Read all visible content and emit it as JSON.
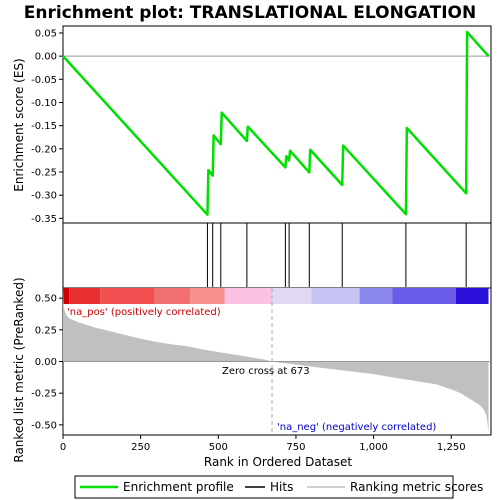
{
  "chart_data": {
    "type": "line",
    "title": "Enrichment plot: TRANSLATIONAL ELONGATION",
    "top_panel": {
      "ylabel": "Enrichment score (ES)",
      "ylim": [
        -0.36,
        0.065
      ],
      "yticks": [
        0.05,
        0.0,
        -0.05,
        -0.1,
        -0.15,
        -0.2,
        -0.25,
        -0.3,
        -0.35
      ],
      "ytick_labels": [
        "0.05",
        "0.00",
        "-0.05",
        "-0.10",
        "-0.15",
        "-0.20",
        "-0.25",
        "-0.30",
        "-0.35"
      ],
      "series": [
        {
          "name": "Enrichment profile",
          "color": "#00e000",
          "x": [
            0,
            465,
            468,
            482,
            485,
            508,
            511,
            592,
            595,
            716,
            719,
            728,
            731,
            793,
            796,
            899,
            902,
            1104,
            1107,
            1298,
            1301,
            1370
          ],
          "y": [
            0.0,
            -0.342,
            -0.246,
            -0.258,
            -0.171,
            -0.19,
            -0.122,
            -0.183,
            -0.152,
            -0.24,
            -0.216,
            -0.225,
            -0.204,
            -0.251,
            -0.202,
            -0.278,
            -0.193,
            -0.341,
            -0.155,
            -0.296,
            0.052,
            0.0
          ]
        }
      ]
    },
    "hits": {
      "name": "Hits",
      "x": [
        465,
        482,
        508,
        592,
        716,
        728,
        793,
        899,
        1104,
        1298
      ]
    },
    "bottom_panel": {
      "ylabel": "Ranked list metric (PreRanked)",
      "xlabel": "Rank in Ordered Dataset",
      "ylim": [
        -0.58,
        0.58
      ],
      "yticks": [
        0.5,
        0.25,
        0.0,
        -0.25,
        -0.5
      ],
      "ytick_labels": [
        "0.50",
        "0.25",
        "0.00",
        "-0.25",
        "-0.50"
      ],
      "xlim": [
        0,
        1378
      ],
      "xticks": [
        0,
        250,
        500,
        750,
        1000,
        1250
      ],
      "xtick_labels": [
        "0",
        "250",
        "500",
        "750",
        "1,000",
        "1,250"
      ],
      "series": [
        {
          "name": "Ranking metric scores",
          "color": "#c0c0c0",
          "x": [
            0,
            2,
            5,
            10,
            20,
            50,
            100,
            150,
            200,
            250,
            300,
            350,
            400,
            450,
            500,
            550,
            600,
            650,
            673,
            700,
            750,
            800,
            850,
            900,
            950,
            1000,
            1050,
            1100,
            1150,
            1200,
            1250,
            1280,
            1300,
            1320,
            1340,
            1355,
            1362,
            1366,
            1370
          ],
          "y": [
            0.58,
            0.45,
            0.4,
            0.37,
            0.34,
            0.31,
            0.27,
            0.24,
            0.21,
            0.18,
            0.155,
            0.135,
            0.12,
            0.095,
            0.075,
            0.055,
            0.035,
            0.015,
            0.0,
            -0.01,
            -0.025,
            -0.04,
            -0.055,
            -0.07,
            -0.085,
            -0.1,
            -0.12,
            -0.14,
            -0.16,
            -0.18,
            -0.22,
            -0.25,
            -0.28,
            -0.31,
            -0.34,
            -0.38,
            -0.42,
            -0.47,
            -0.56
          ]
        }
      ],
      "zero_cross_label": "Zero cross at 673",
      "zero_cross_x": 673,
      "pos_label": "'na_pos' (positively correlated)",
      "neg_label": "'na_neg' (negatively correlated)"
    },
    "color_bar": {
      "segments": [
        {
          "x0": 0,
          "x1": 20,
          "color": "#d40000"
        },
        {
          "x0": 20,
          "x1": 120,
          "color": "#e83030"
        },
        {
          "x0": 120,
          "x1": 295,
          "color": "#f05050"
        },
        {
          "x0": 295,
          "x1": 410,
          "color": "#f07070"
        },
        {
          "x0": 410,
          "x1": 520,
          "color": "#f89090"
        },
        {
          "x0": 520,
          "x1": 673,
          "color": "#fcc0e0"
        },
        {
          "x0": 673,
          "x1": 800,
          "color": "#e0d8f4"
        },
        {
          "x0": 800,
          "x1": 955,
          "color": "#c8c4f4"
        },
        {
          "x0": 955,
          "x1": 1060,
          "color": "#8c88ec"
        },
        {
          "x0": 1060,
          "x1": 1265,
          "color": "#6a5ce8"
        },
        {
          "x0": 1265,
          "x1": 1370,
          "color": "#2a10d8"
        }
      ]
    },
    "legend": {
      "items": [
        {
          "label": "Enrichment profile",
          "color": "#00e000"
        },
        {
          "label": "Hits",
          "color": "#000000"
        },
        {
          "label": "Ranking metric scores",
          "color": "#c0c0c0"
        }
      ]
    }
  }
}
